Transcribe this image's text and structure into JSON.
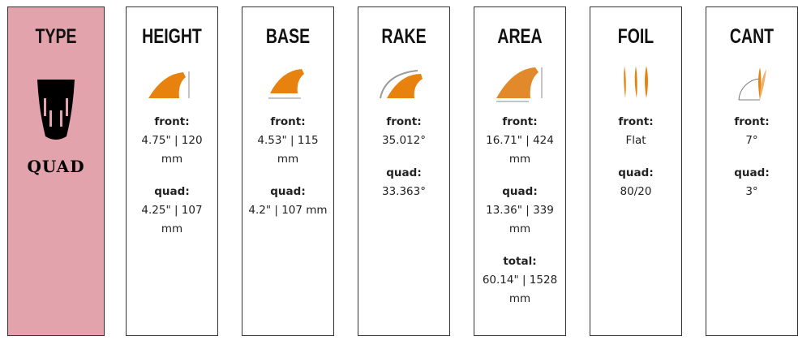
{
  "columns": [
    {
      "title": "TYPE",
      "value": "QUAD",
      "icon": "quad-surfboard-tail-icon",
      "background": "#e3a3ad"
    },
    {
      "title": "HEIGHT",
      "icon": "fin-height-diagram-icon",
      "specs": [
        {
          "label": "front:",
          "value": "4.75\" | 120 mm"
        },
        {
          "label": "quad:",
          "value": "4.25\" | 107 mm"
        }
      ]
    },
    {
      "title": "BASE",
      "icon": "fin-base-diagram-icon",
      "specs": [
        {
          "label": "front:",
          "value": "4.53\" | 115 mm"
        },
        {
          "label": "quad:",
          "value": "4.2\" | 107 mm"
        }
      ]
    },
    {
      "title": "RAKE",
      "icon": "fin-rake-diagram-icon",
      "specs": [
        {
          "label": "front:",
          "value": "35.012°"
        },
        {
          "label": "quad:",
          "value": "33.363°"
        }
      ]
    },
    {
      "title": "AREA",
      "icon": "fin-area-diagram-icon",
      "specs": [
        {
          "label": "front:",
          "value": "16.71\" | 424 mm"
        },
        {
          "label": "quad:",
          "value": "13.36\" | 339 mm"
        },
        {
          "label": "total:",
          "value": "60.14\" | 1528 mm"
        }
      ]
    },
    {
      "title": "FOIL",
      "icon": "fin-foil-diagram-icon",
      "specs": [
        {
          "label": "front:",
          "value": "Flat"
        },
        {
          "label": "quad:",
          "value": "80/20"
        }
      ]
    },
    {
      "title": "CANT",
      "icon": "fin-cant-diagram-icon",
      "specs": [
        {
          "label": "front:",
          "value": "7°"
        },
        {
          "label": "quad:",
          "value": "3°"
        }
      ]
    }
  ],
  "colors": {
    "fin": "#e8820f",
    "type_bg": "#e3a3ad"
  }
}
